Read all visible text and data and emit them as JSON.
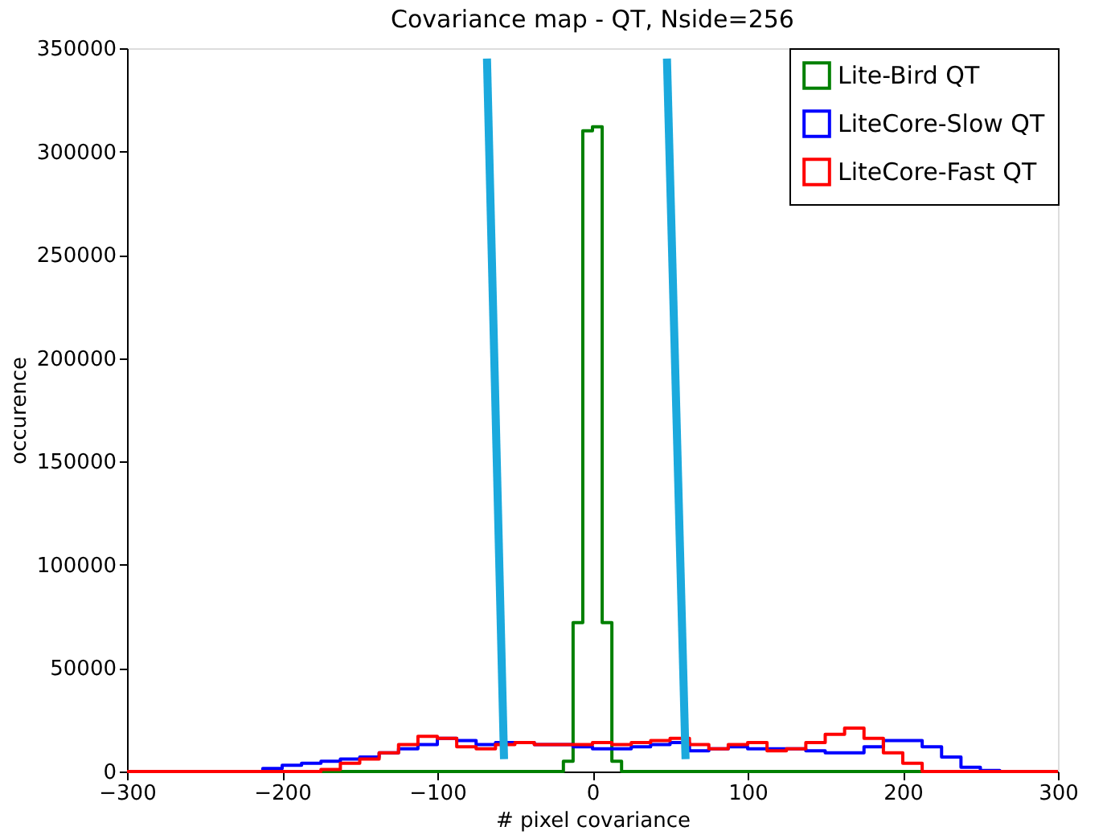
{
  "chart_data": {
    "type": "histogram",
    "title": "Covariance map - QT, Nside=256",
    "xlabel": "# pixel covariance",
    "ylabel": "occurence",
    "bins": [
      -300,
      -287.5,
      -275,
      -262.5,
      -250,
      -237.5,
      -225,
      -212.5,
      -200,
      -187.5,
      -175,
      -162.5,
      -150,
      -137.5,
      -125,
      -112.5,
      -100,
      -87.5,
      -75,
      -62.5,
      -50,
      -37.5,
      -25,
      -12.5,
      0,
      12.5,
      25,
      37.5,
      50,
      62.5,
      75,
      87.5,
      100,
      112.5,
      125,
      137.5,
      150,
      162.5,
      175,
      187.5,
      200,
      212.5,
      225,
      237.5,
      250,
      262.5,
      275,
      287.5,
      300
    ],
    "series": [
      {
        "name": "Lite-Bird QT",
        "color": "#008000",
        "bins": [
          -300,
          -18.75,
          -12.5,
          -6.25,
          0,
          6.25,
          12.5,
          18.75,
          300
        ],
        "values": [
          0,
          5000,
          72000,
          310000,
          312000,
          72000,
          5000,
          0
        ]
      },
      {
        "name": "LiteCore-Slow QT",
        "color": "#0000ff",
        "values": [
          0,
          0,
          0,
          0,
          0,
          0,
          0,
          1500,
          3000,
          4000,
          5000,
          6000,
          7000,
          9000,
          11000,
          13000,
          16000,
          15000,
          13000,
          14000,
          14000,
          13000,
          13000,
          12000,
          11000,
          11000,
          12000,
          13000,
          14000,
          10000,
          11000,
          12000,
          11000,
          11000,
          11000,
          10000,
          9000,
          9000,
          12000,
          15000,
          15000,
          12000,
          7000,
          2000,
          500,
          0,
          0,
          0
        ]
      },
      {
        "name": "LiteCore-Fast QT",
        "color": "#ff0000",
        "values": [
          0,
          0,
          0,
          0,
          0,
          0,
          0,
          0,
          0,
          0,
          1000,
          4000,
          6000,
          9000,
          13000,
          17000,
          16000,
          12000,
          11000,
          13000,
          14000,
          13000,
          13000,
          13000,
          14000,
          13000,
          14000,
          15000,
          16000,
          13000,
          11000,
          13000,
          14000,
          10000,
          11000,
          14000,
          18000,
          21000,
          16000,
          9000,
          4000,
          0,
          0,
          0,
          0,
          0,
          0,
          0
        ]
      },
      {
        "type": "line",
        "color": "#1ba9dd",
        "x": [
          -68,
          -57
        ],
        "values": [
          345000,
          6000
        ]
      },
      {
        "type": "line",
        "color": "#1ba9dd",
        "x": [
          48,
          60
        ],
        "values": [
          345000,
          6000
        ]
      }
    ],
    "xlim": [
      -300,
      300
    ],
    "xticks": [
      -300,
      -200,
      -100,
      0,
      100,
      200,
      300
    ],
    "ylim": [
      0,
      350000
    ],
    "yticks": [
      0,
      50000,
      100000,
      150000,
      200000,
      250000,
      300000,
      350000
    ],
    "legend": "top right"
  }
}
